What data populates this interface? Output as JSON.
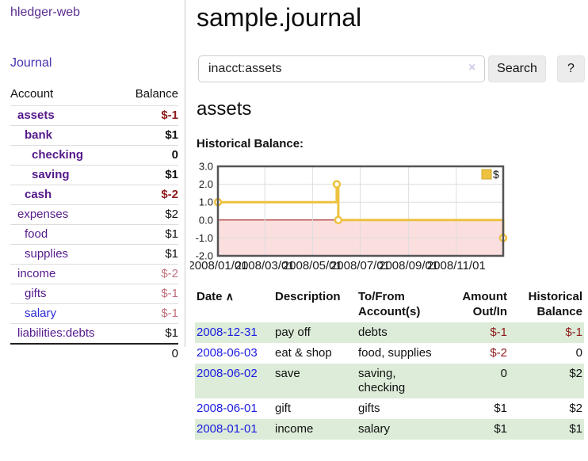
{
  "colors": {
    "visited_link_purple": "#551a8b",
    "link_blue": "#1b1be0",
    "negative_dark_red": "#8e1a1a",
    "negative_light_rose": "#c0707c",
    "row_stripe_green": "#dcecd8",
    "chart_series_gold": "#edc240",
    "chart_negative_fill": "#fbdede",
    "chart_zero_line": "#990000"
  },
  "sidebar": {
    "app_title": "hledger-web",
    "journal_link": "Journal",
    "account_header": "Account",
    "balance_header": "Balance",
    "accounts": [
      {
        "name": "assets",
        "balance": "$-1"
      },
      {
        "name": "bank",
        "balance": "$1"
      },
      {
        "name": "checking",
        "balance": "0"
      },
      {
        "name": "saving",
        "balance": "$1"
      },
      {
        "name": "cash",
        "balance": "$-2"
      },
      {
        "name": "expenses",
        "balance": "$2"
      },
      {
        "name": "food",
        "balance": "$1"
      },
      {
        "name": "supplies",
        "balance": "$1"
      },
      {
        "name": "income",
        "balance": "$-2"
      },
      {
        "name": "gifts",
        "balance": "$-1"
      },
      {
        "name": "salary",
        "balance": "$-1"
      },
      {
        "name": "liabilities:debts",
        "balance": "$1"
      }
    ],
    "total": "0"
  },
  "main": {
    "title": "sample.journal",
    "search": {
      "value": "inacct:assets",
      "clear_icon": "×",
      "search_button": "Search",
      "help_button": "?"
    },
    "account_heading": "assets",
    "chart_title": "Historical Balance:"
  },
  "chart_data": {
    "type": "line",
    "style": "step",
    "title": "Historical Balance:",
    "xlabel": "",
    "ylabel": "",
    "xlim": [
      "2008/01/01",
      "2008/12/31"
    ],
    "ylim": [
      -2,
      3
    ],
    "y_ticks": [
      3,
      2,
      1,
      0,
      -1,
      -2
    ],
    "y_tick_labels": [
      "3.0",
      "2.0",
      "1.0",
      "0.0",
      "-1.0",
      "-2.0"
    ],
    "x_tick_labels": [
      "2008/01/01",
      "2008/03/01",
      "2008/05/01",
      "2008/07/01",
      "2008/09/01",
      "2008/11/01"
    ],
    "grid": true,
    "legend_position": "top-right",
    "series": [
      {
        "name": "$",
        "color": "#edc240",
        "points": [
          [
            "2008/01/01",
            1
          ],
          [
            "2008/06/01",
            2
          ],
          [
            "2008/06/03",
            0
          ],
          [
            "2008/12/31",
            -1
          ]
        ]
      }
    ],
    "negative_region_color": "#fbdede",
    "zero_line_color": "#990000"
  },
  "register": {
    "headers": {
      "date": "Date",
      "sort_icon": "∧",
      "description": "Description",
      "tofrom_1": "To/From",
      "tofrom_2": "Account(s)",
      "amount_1": "Amount",
      "amount_2": "Out/In",
      "balance_1": "Historical",
      "balance_2": "Balance"
    },
    "rows": [
      {
        "date": "2008-12-31",
        "description": "pay off",
        "accounts": "debts",
        "amount": "$-1",
        "balance": "$-1"
      },
      {
        "date": "2008-06-03",
        "description": "eat & shop",
        "accounts": "food, supplies",
        "amount": "$-2",
        "balance": "0"
      },
      {
        "date": "2008-06-02",
        "description": "save",
        "accounts": "saving, checking",
        "amount": "0",
        "balance": "$2"
      },
      {
        "date": "2008-06-01",
        "description": "gift",
        "accounts": "gifts",
        "amount": "$1",
        "balance": "$2"
      },
      {
        "date": "2008-01-01",
        "description": "income",
        "accounts": "salary",
        "amount": "$1",
        "balance": "$1"
      }
    ]
  }
}
